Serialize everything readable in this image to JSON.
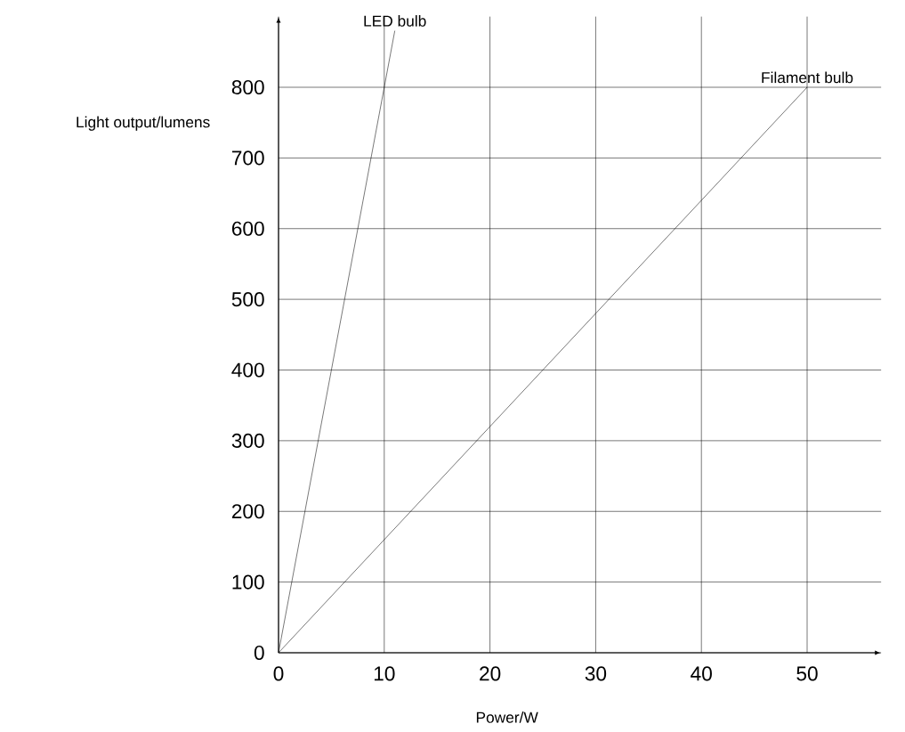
{
  "chart_data": {
    "type": "line",
    "xlabel": "Power/W",
    "ylabel": "Light output/lumens",
    "series": [
      {
        "name": "LED bulb",
        "color": "#000000",
        "x": [
          0,
          11
        ],
        "values": [
          0,
          880
        ]
      },
      {
        "name": "Filament bulb",
        "color": "#000000",
        "x": [
          0,
          50
        ],
        "values": [
          0,
          800
        ]
      }
    ],
    "xlim": [
      0,
      57
    ],
    "ylim": [
      0,
      900
    ],
    "xticks": [
      0,
      10,
      20,
      30,
      40,
      50
    ],
    "yticks": [
      0,
      100,
      200,
      300,
      400,
      500,
      600,
      700,
      800
    ],
    "grid": true,
    "legend": false,
    "marker": "none",
    "line_style": "solid"
  }
}
